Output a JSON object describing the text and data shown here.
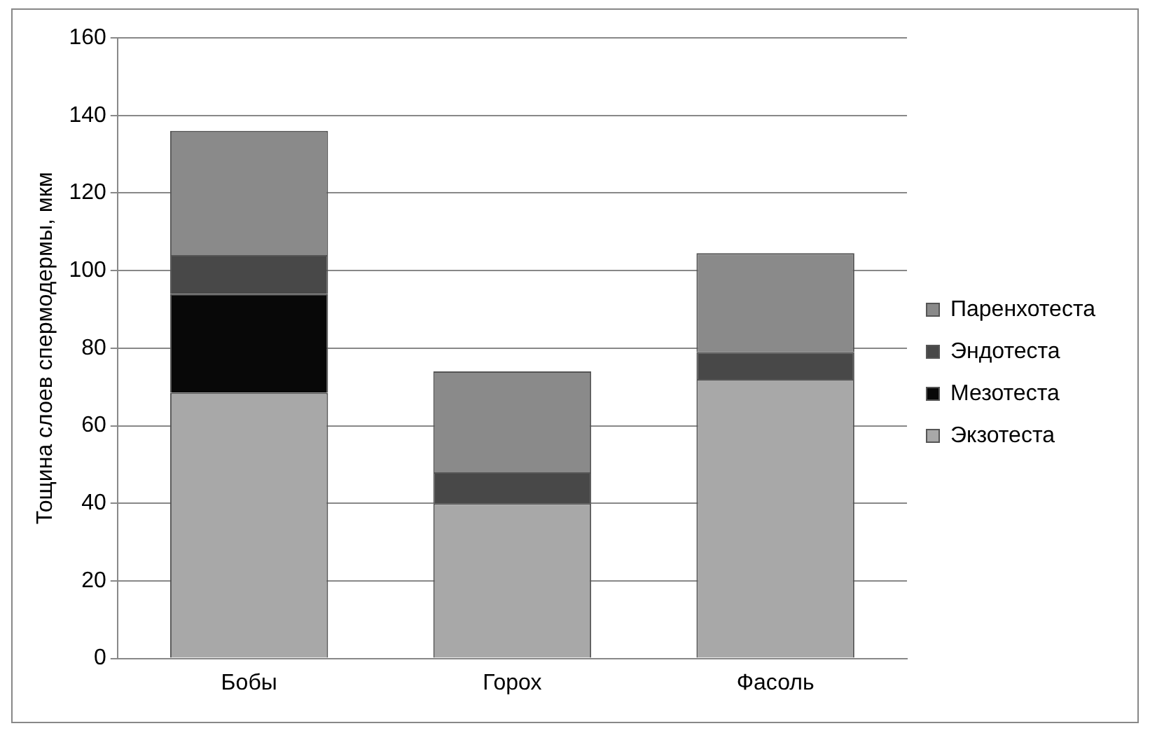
{
  "chart_data": {
    "type": "bar",
    "stacked": true,
    "ylabel": "Тощина слоев спермодермы, мкм",
    "categories": [
      "Бобы",
      "Горох",
      "Фасоль"
    ],
    "series": [
      {
        "name": "Экзотеста",
        "color": "#a8a8a8",
        "values": [
          68.5,
          40,
          72
        ]
      },
      {
        "name": "Мезотеста",
        "color": "#080808",
        "values": [
          25.5,
          0,
          0
        ]
      },
      {
        "name": "Эндотеста",
        "color": "#484848",
        "values": [
          10,
          8,
          7
        ]
      },
      {
        "name": "Паренхотеста",
        "color": "#8a8a8a",
        "values": [
          32,
          26,
          25.5
        ]
      }
    ],
    "ylim": [
      0,
      160
    ],
    "yticks": [
      0,
      20,
      40,
      60,
      80,
      100,
      120,
      140,
      160
    ],
    "grid": "y",
    "legend": "right"
  }
}
